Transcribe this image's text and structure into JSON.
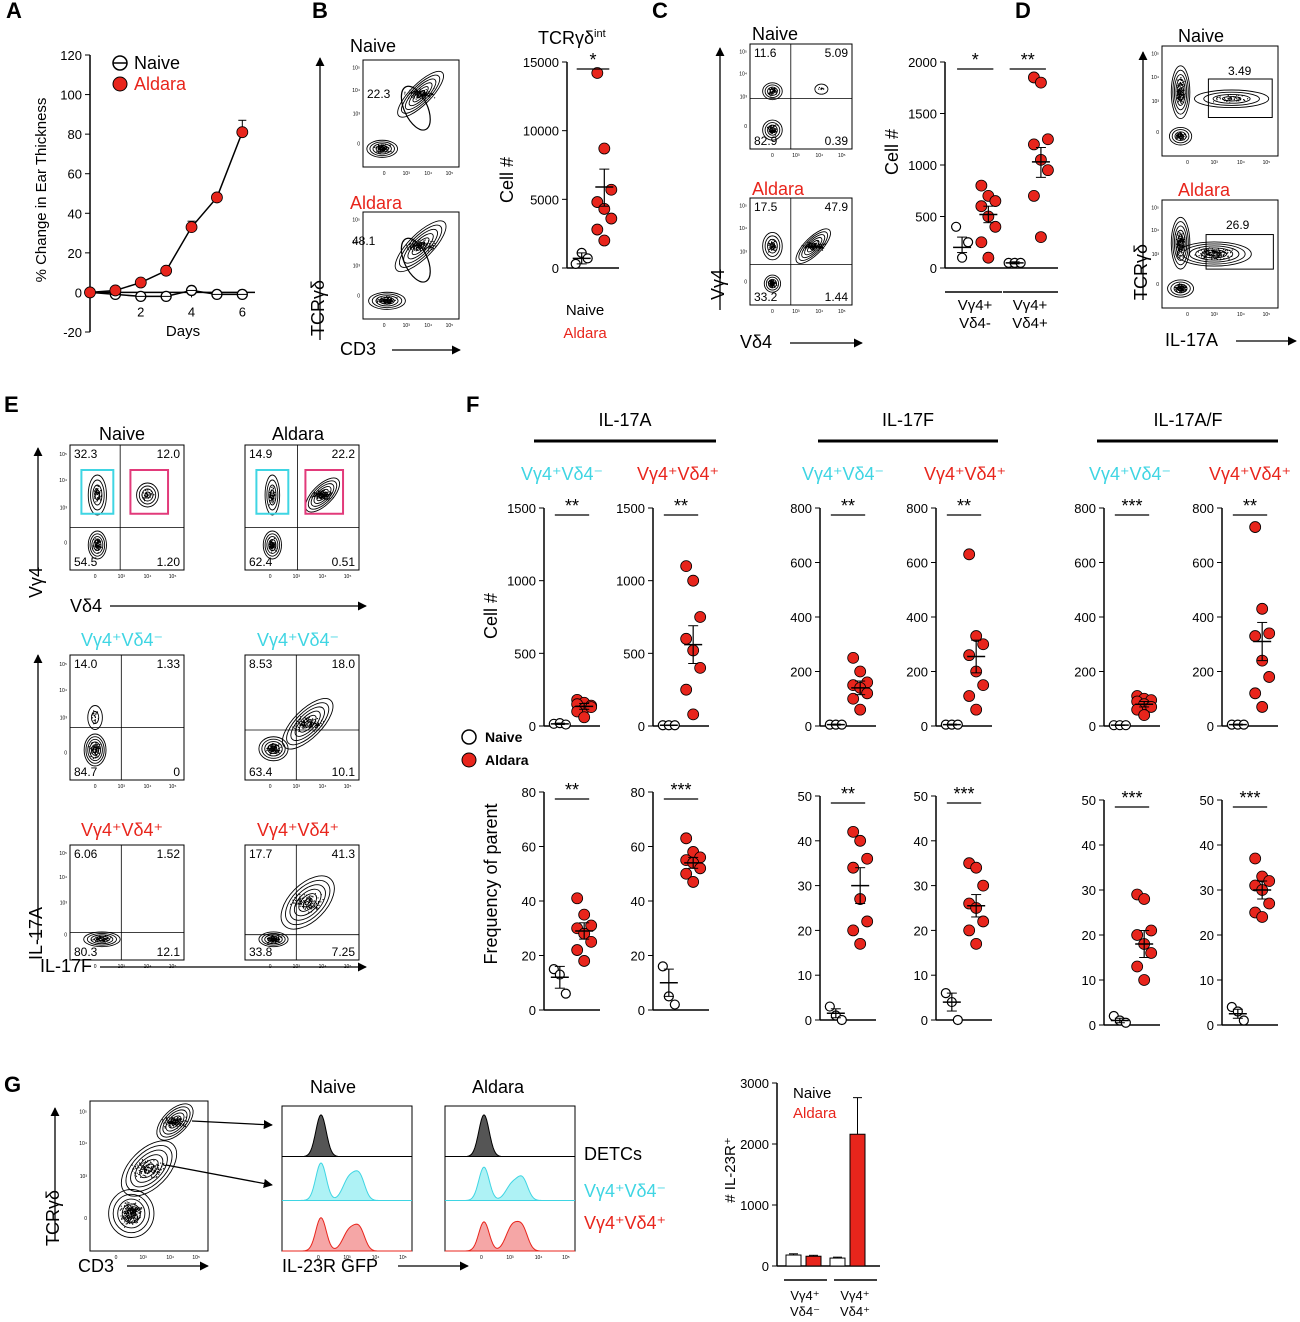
{
  "colors": {
    "naive": "#ffffff",
    "aldara": "#e8251c",
    "cyan": "#3fd5e3",
    "black": "#000000",
    "pink": "#e23a7a",
    "red_fill": "#f5a6a6",
    "cyan_fill": "#aef2f5"
  },
  "panels": {
    "A": "A",
    "B": "B",
    "C": "C",
    "D": "D",
    "E": "E",
    "F": "F",
    "G": "G"
  },
  "common": {
    "naive": "Naive",
    "aldara": "Aldara",
    "cell_count": "Cell #",
    "freq_parent": "Frequency of parent",
    "sig1": "*",
    "sig2": "**",
    "sig3": "***"
  },
  "panelA": {
    "ylabel": "% Change in Ear Thickness",
    "xlabel": "Days",
    "legend": [
      "Naive",
      "Aldara"
    ]
  },
  "panelB": {
    "title": "TCRγδ",
    "title_sup": "int",
    "ylabel": "TCRγδ",
    "xlabel": "CD3",
    "naive_pct": "22.3",
    "aldara_pct": "48.1",
    "legend": [
      "Naive",
      "Aldara"
    ]
  },
  "panelC": {
    "ylabel": "Vγ4",
    "xlabel": "Vδ4",
    "naive_q": [
      "11.6",
      "5.09",
      "82.9",
      "0.39"
    ],
    "aldara_q": [
      "17.5",
      "47.9",
      "33.2",
      "1.44"
    ],
    "groups": [
      [
        "Vγ4+",
        "Vδ4-"
      ],
      [
        "Vγ4+",
        "Vδ4+"
      ]
    ]
  },
  "panelD": {
    "ylabel": "TCRγδ",
    "xlabel": "IL-17A",
    "naive_pct": "3.49",
    "aldara_pct": "26.9"
  },
  "panelE": {
    "top_ylabel": "Vγ4",
    "top_xlabel": "Vδ4",
    "naive_q": [
      "32.3",
      "12.0",
      "54.5",
      "1.20"
    ],
    "aldara_q": [
      "14.9",
      "22.2",
      "62.4",
      "0.51"
    ],
    "ylabel": "IL-17A",
    "xlabel": "IL-17F",
    "sub_neg": "Vγ4⁺Vδ4⁻",
    "sub_pos": "Vγ4⁺Vδ4⁺",
    "q_neg_naive": [
      "14.0",
      "1.33",
      "84.7",
      "0"
    ],
    "q_neg_aldara": [
      "8.53",
      "18.0",
      "63.4",
      "10.1"
    ],
    "q_pos_naive": [
      "6.06",
      "1.52",
      "80.3",
      "12.1"
    ],
    "q_pos_aldara": [
      "17.7",
      "41.3",
      "33.8",
      "7.25"
    ]
  },
  "panelF": {
    "groups": [
      "IL-17A",
      "IL-17F",
      "IL-17A/F"
    ],
    "sub_neg": "Vγ4⁺Vδ4⁻",
    "sub_pos": "Vγ4⁺Vδ4⁺"
  },
  "panelG": {
    "ylabel": "TCRγδ",
    "xlabel": "CD3",
    "hist_xlabel": "IL-23R GFP",
    "hist_labels": [
      "DETCs",
      "Vγ4⁺Vδ4⁻",
      "Vγ4⁺Vδ4⁺"
    ],
    "bar_ylabel": "# IL-23R⁺",
    "groups": [
      [
        "Vγ4⁺",
        "Vδ4⁻"
      ],
      [
        "Vγ4⁺",
        "Vδ4⁺"
      ]
    ],
    "legend": [
      "Naive",
      "Aldara"
    ]
  },
  "flow_ticks": {
    "t0": "0",
    "t3": "10³",
    "t4": "10⁴",
    "t5": "10⁵"
  },
  "chart_data": [
    {
      "id": "A",
      "type": "line",
      "x": [
        0,
        1,
        2,
        3,
        4,
        5,
        6
      ],
      "ylim": [
        -20,
        120
      ],
      "xticks": [
        2,
        4,
        6
      ],
      "yticks": [
        -20,
        0,
        20,
        40,
        60,
        80,
        100,
        120
      ],
      "series": [
        {
          "name": "Naive",
          "values": [
            0,
            -1,
            -2,
            -2,
            1,
            -1,
            -1
          ]
        },
        {
          "name": "Aldara",
          "values": [
            0,
            1,
            5,
            11,
            33,
            48,
            81
          ],
          "err": [
            0,
            0,
            0,
            0,
            3,
            2,
            6
          ]
        }
      ]
    },
    {
      "id": "B",
      "type": "scatter",
      "ylim": [
        0,
        15000
      ],
      "yticks": [
        0,
        5000,
        10000,
        15000
      ],
      "sig": "*",
      "groups": [
        {
          "name": "Naive",
          "points": [
            300,
            1100,
            700
          ],
          "mean": 700,
          "sem": [
            300,
            1100
          ]
        },
        {
          "name": "Aldara",
          "points": [
            14200,
            8700,
            5700,
            4800,
            4300,
            3600,
            2800,
            2000
          ],
          "mean": 5900,
          "sem": [
            4500,
            7200
          ]
        }
      ]
    },
    {
      "id": "C",
      "type": "scatter",
      "ylim": [
        0,
        2000
      ],
      "yticks": [
        0,
        500,
        1000,
        1500,
        2000
      ],
      "sig": [
        "*",
        "**"
      ],
      "groups": [
        {
          "name": "Naive",
          "points": [
            400,
            100,
            250
          ],
          "mean": 200,
          "sem": [
            150,
            300
          ]
        },
        {
          "name": "Aldara",
          "points": [
            800,
            700,
            650,
            600,
            500,
            400,
            250,
            100
          ],
          "mean": 520,
          "sem": [
            440,
            600
          ]
        },
        {
          "name": "Naive",
          "points": [
            50,
            50,
            50
          ],
          "mean": 50,
          "sem": [
            40,
            60
          ]
        },
        {
          "name": "Aldara",
          "points": [
            1850,
            1800,
            1250,
            1200,
            1050,
            950,
            700,
            300
          ],
          "mean": 1030,
          "sem": [
            880,
            1170
          ]
        }
      ]
    },
    {
      "id": "F1",
      "type": "scatter",
      "ylim": [
        0,
        1500
      ],
      "yticks": [
        0,
        500,
        1000,
        1500
      ],
      "sig": "**",
      "groups": [
        {
          "name": "Naive",
          "points": [
            15,
            20,
            10
          ],
          "mean": 15,
          "sem": [
            10,
            20
          ]
        },
        {
          "name": "Aldara",
          "points": [
            180,
            160,
            140,
            150,
            120,
            130,
            100,
            60
          ],
          "mean": 135,
          "sem": [
            115,
            155
          ]
        }
      ]
    },
    {
      "id": "F2",
      "type": "scatter",
      "ylim": [
        0,
        1500
      ],
      "yticks": [
        0,
        500,
        1000,
        1500
      ],
      "sig": "**",
      "groups": [
        {
          "name": "Naive",
          "points": [
            5,
            5,
            5
          ],
          "mean": 5,
          "sem": [
            3,
            7
          ]
        },
        {
          "name": "Aldara",
          "points": [
            1100,
            1000,
            750,
            600,
            520,
            400,
            250,
            80
          ],
          "mean": 560,
          "sem": [
            430,
            690
          ]
        }
      ]
    },
    {
      "id": "F3",
      "type": "scatter",
      "ylim": [
        0,
        800
      ],
      "yticks": [
        0,
        200,
        400,
        600,
        800
      ],
      "sig": "**",
      "groups": [
        {
          "name": "Naive",
          "points": [
            5,
            5,
            5
          ],
          "mean": 5,
          "sem": [
            3,
            7
          ]
        },
        {
          "name": "Aldara",
          "points": [
            250,
            200,
            160,
            150,
            140,
            120,
            100,
            60
          ],
          "mean": 140,
          "sem": [
            115,
            165
          ]
        }
      ]
    },
    {
      "id": "F4",
      "type": "scatter",
      "ylim": [
        0,
        800
      ],
      "yticks": [
        0,
        200,
        400,
        600,
        800
      ],
      "sig": "**",
      "groups": [
        {
          "name": "Naive",
          "points": [
            5,
            5,
            5
          ],
          "mean": 5,
          "sem": [
            3,
            7
          ]
        },
        {
          "name": "Aldara",
          "points": [
            630,
            330,
            300,
            260,
            200,
            150,
            110,
            60
          ],
          "mean": 255,
          "sem": [
            195,
            315
          ]
        }
      ]
    },
    {
      "id": "F5",
      "type": "scatter",
      "ylim": [
        0,
        800
      ],
      "yticks": [
        0,
        200,
        400,
        600,
        800
      ],
      "sig": "***",
      "groups": [
        {
          "name": "Naive",
          "points": [
            3,
            3,
            3
          ],
          "mean": 3,
          "sem": [
            2,
            4
          ]
        },
        {
          "name": "Aldara",
          "points": [
            110,
            100,
            95,
            90,
            80,
            70,
            60,
            40
          ],
          "mean": 80,
          "sem": [
            70,
            90
          ]
        }
      ]
    },
    {
      "id": "F6",
      "type": "scatter",
      "ylim": [
        0,
        800
      ],
      "yticks": [
        0,
        200,
        400,
        600,
        800
      ],
      "sig": "**",
      "groups": [
        {
          "name": "Naive",
          "points": [
            5,
            5,
            5
          ],
          "mean": 5,
          "sem": [
            3,
            7
          ]
        },
        {
          "name": "Aldara",
          "points": [
            730,
            430,
            340,
            330,
            240,
            180,
            120,
            70
          ],
          "mean": 310,
          "sem": [
            240,
            380
          ]
        }
      ]
    },
    {
      "id": "F7",
      "type": "scatter",
      "ylim": [
        0,
        80
      ],
      "yticks": [
        0,
        20,
        40,
        60,
        80
      ],
      "sig": "**",
      "groups": [
        {
          "name": "Naive",
          "points": [
            15,
            13,
            6
          ],
          "mean": 12,
          "sem": [
            8,
            16
          ]
        },
        {
          "name": "Aldara",
          "points": [
            41,
            35,
            31,
            30,
            28,
            25,
            22,
            18
          ],
          "mean": 29,
          "sem": [
            26,
            32
          ]
        }
      ]
    },
    {
      "id": "F8",
      "type": "scatter",
      "ylim": [
        0,
        80
      ],
      "yticks": [
        0,
        20,
        40,
        60,
        80
      ],
      "sig": "***",
      "groups": [
        {
          "name": "Naive",
          "points": [
            16,
            5,
            2
          ],
          "mean": 10,
          "sem": [
            5,
            15
          ]
        },
        {
          "name": "Aldara",
          "points": [
            63,
            58,
            56,
            55,
            54,
            52,
            50,
            47
          ],
          "mean": 54,
          "sem": [
            52,
            56
          ]
        }
      ]
    },
    {
      "id": "F9",
      "type": "scatter",
      "ylim": [
        0,
        50
      ],
      "yticks": [
        0,
        10,
        20,
        30,
        40,
        50
      ],
      "sig": "**",
      "groups": [
        {
          "name": "Naive",
          "points": [
            3,
            1,
            0
          ],
          "mean": 1.5,
          "sem": [
            0.5,
            2.5
          ]
        },
        {
          "name": "Aldara",
          "points": [
            42,
            40,
            36,
            34,
            27,
            22,
            20,
            17
          ],
          "mean": 30,
          "sem": [
            26,
            34
          ]
        }
      ]
    },
    {
      "id": "F10",
      "type": "scatter",
      "ylim": [
        0,
        50
      ],
      "yticks": [
        0,
        10,
        20,
        30,
        40,
        50
      ],
      "sig": "***",
      "groups": [
        {
          "name": "Naive",
          "points": [
            6,
            4,
            0
          ],
          "mean": 4,
          "sem": [
            2,
            6
          ]
        },
        {
          "name": "Aldara",
          "points": [
            35,
            34,
            30,
            26,
            25,
            22,
            20,
            17
          ],
          "mean": 25.5,
          "sem": [
            23,
            28
          ]
        }
      ]
    },
    {
      "id": "F11",
      "type": "scatter",
      "ylim": [
        0,
        50
      ],
      "yticks": [
        0,
        10,
        20,
        30,
        40,
        50
      ],
      "sig": "***",
      "groups": [
        {
          "name": "Naive",
          "points": [
            2,
            1,
            0.5
          ],
          "mean": 1,
          "sem": [
            0.5,
            1.5
          ]
        },
        {
          "name": "Aldara",
          "points": [
            29,
            28,
            21,
            20,
            18,
            16,
            13,
            10
          ],
          "mean": 18,
          "sem": [
            15,
            21
          ]
        }
      ]
    },
    {
      "id": "F12",
      "type": "scatter",
      "ylim": [
        0,
        50
      ],
      "yticks": [
        0,
        10,
        20,
        30,
        40,
        50
      ],
      "sig": "***",
      "groups": [
        {
          "name": "Naive",
          "points": [
            4,
            3,
            1
          ],
          "mean": 2.5,
          "sem": [
            1.5,
            3.5
          ]
        },
        {
          "name": "Aldara",
          "points": [
            37,
            33,
            32,
            31,
            30,
            27,
            25,
            24
          ],
          "mean": 30,
          "sem": [
            28,
            32
          ]
        }
      ]
    },
    {
      "id": "G",
      "type": "bar",
      "ylim": [
        0,
        3000
      ],
      "yticks": [
        0,
        1000,
        2000,
        3000
      ],
      "categories": [
        "Vγ4⁺ Vδ4⁻",
        "Vγ4⁺ Vδ4⁺"
      ],
      "series": [
        {
          "name": "Naive",
          "values": [
            180,
            130
          ],
          "err": [
            20,
            15
          ]
        },
        {
          "name": "Aldara",
          "values": [
            160,
            2160
          ],
          "err": [
            15,
            600
          ]
        }
      ]
    }
  ]
}
